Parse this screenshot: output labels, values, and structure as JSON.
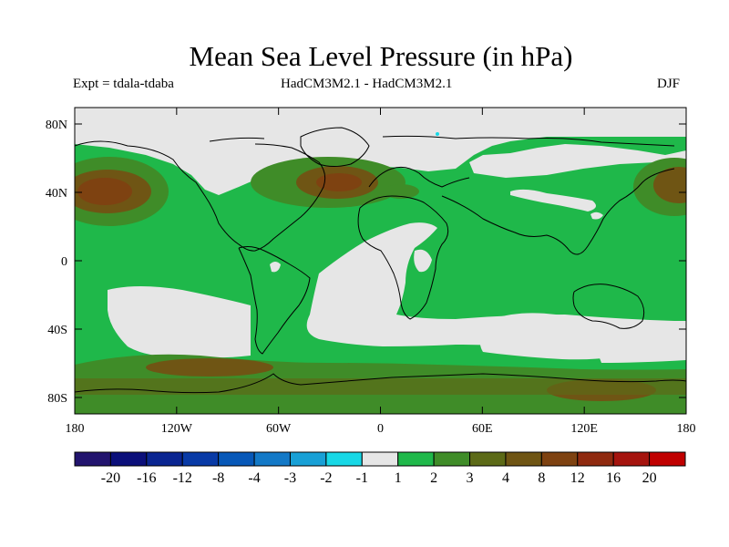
{
  "title": "Mean Sea Level Pressure (in hPa)",
  "expt_label": "Expt = tdala-tdaba",
  "model_label": "HadCM3M2.1 - HadCM3M2.1",
  "season_label": "DJF",
  "lat_ticks": [
    "80N",
    "40N",
    "0",
    "40S",
    "80S"
  ],
  "lon_ticks": [
    "180",
    "120W",
    "60W",
    "0",
    "60E",
    "120E",
    "180"
  ],
  "colorbar": {
    "colors": [
      "#22146e",
      "#0b0f7a",
      "#0a2591",
      "#083aa6",
      "#0758b8",
      "#1379c7",
      "#18a0d6",
      "#18d8e6",
      "#e6e6e6",
      "#1fb84a",
      "#3f8c28",
      "#5c6a17",
      "#6f5514",
      "#7e4211",
      "#8f2a0f",
      "#a5140e",
      "#c00000"
    ],
    "labels": [
      "-20",
      "-16",
      "-12",
      "-8",
      "-4",
      "-3",
      "-2",
      "-1",
      "1",
      "2",
      "3",
      "4",
      "8",
      "12",
      "16",
      "20"
    ]
  },
  "colors": {
    "neutral": "#e6e6e6",
    "green": "#1fb84a",
    "olive": "#3f8c28",
    "brown_light": "#6f5514",
    "brown_dark": "#7e4211",
    "cyan": "#18d8e6"
  }
}
